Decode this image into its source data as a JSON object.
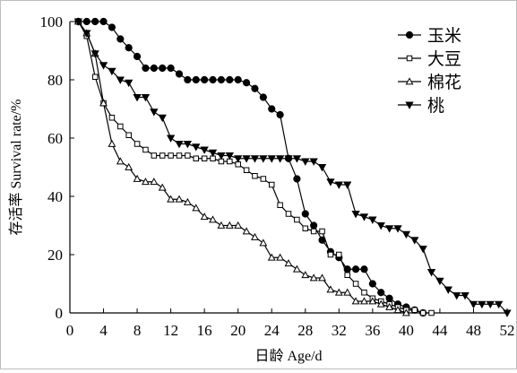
{
  "chart_data": {
    "type": "line",
    "title": "",
    "xlabel": "日龄 Age/d",
    "ylabel": "存活率 Survival rate/%",
    "xlim": [
      0,
      52
    ],
    "ylim": [
      0,
      100
    ],
    "xticks": [
      0,
      4,
      8,
      12,
      16,
      20,
      24,
      28,
      32,
      36,
      40,
      44,
      48,
      52
    ],
    "yticks": [
      0,
      20,
      40,
      60,
      80,
      100
    ],
    "grid": false,
    "legend_position": "top-right",
    "series": [
      {
        "name": "玉米",
        "marker": "filled-circle",
        "x": [
          1,
          2,
          3,
          4,
          5,
          6,
          7,
          8,
          9,
          10,
          11,
          12,
          13,
          14,
          15,
          16,
          17,
          18,
          19,
          20,
          21,
          22,
          23,
          24,
          25,
          26,
          27,
          28,
          29,
          30,
          31,
          32,
          33,
          34,
          35,
          36,
          37,
          38,
          39,
          40,
          41,
          42
        ],
        "y": [
          100,
          100,
          100,
          100,
          98,
          94,
          91,
          88,
          84,
          84,
          84,
          84,
          82,
          80,
          80,
          80,
          80,
          80,
          80,
          80,
          79,
          77,
          74,
          70,
          68,
          53,
          46,
          34,
          30,
          25,
          21,
          19,
          15,
          15,
          15,
          10,
          7,
          5,
          3,
          2,
          1,
          0
        ]
      },
      {
        "name": "大豆",
        "marker": "open-square",
        "x": [
          1,
          2,
          3,
          4,
          5,
          6,
          7,
          8,
          9,
          10,
          11,
          12,
          13,
          14,
          15,
          16,
          17,
          18,
          19,
          20,
          21,
          22,
          23,
          24,
          25,
          26,
          27,
          28,
          29,
          30,
          31,
          32,
          33,
          34,
          35,
          36,
          37,
          38,
          39,
          40,
          41,
          42,
          43
        ],
        "y": [
          100,
          95,
          81,
          72,
          67,
          64,
          61,
          58,
          56,
          54,
          54,
          54,
          54,
          54,
          53,
          53,
          53,
          52,
          52,
          51,
          49,
          47,
          46,
          44,
          37,
          34,
          32,
          29,
          28,
          28,
          20,
          20,
          13,
          10,
          7,
          5,
          4,
          3,
          2,
          1,
          1,
          0,
          0
        ]
      },
      {
        "name": "棉花",
        "marker": "open-triangle",
        "x": [
          1,
          2,
          3,
          4,
          5,
          6,
          7,
          8,
          9,
          10,
          11,
          12,
          13,
          14,
          15,
          16,
          17,
          18,
          19,
          20,
          21,
          22,
          23,
          24,
          25,
          26,
          27,
          28,
          29,
          30,
          31,
          32,
          33,
          34,
          35,
          36,
          37,
          38,
          39,
          40
        ],
        "y": [
          100,
          96,
          89,
          72,
          58,
          52,
          50,
          46,
          45,
          45,
          43,
          39,
          39,
          38,
          36,
          33,
          32,
          30,
          30,
          30,
          28,
          26,
          24,
          19,
          19,
          17,
          15,
          13,
          12,
          12,
          8,
          7,
          7,
          4,
          4,
          4,
          3,
          2,
          1,
          0
        ]
      },
      {
        "name": "桃",
        "marker": "filled-down-triangle",
        "x": [
          1,
          2,
          3,
          4,
          5,
          6,
          7,
          8,
          9,
          10,
          11,
          12,
          13,
          14,
          15,
          16,
          17,
          18,
          19,
          20,
          21,
          22,
          23,
          24,
          25,
          26,
          27,
          28,
          29,
          30,
          31,
          32,
          33,
          34,
          35,
          36,
          37,
          38,
          39,
          40,
          41,
          42,
          43,
          44,
          45,
          46,
          47,
          48,
          49,
          50,
          51,
          52
        ],
        "y": [
          100,
          96,
          89,
          85,
          83,
          80,
          79,
          74,
          74,
          69,
          67,
          60,
          58,
          58,
          57,
          56,
          55,
          54,
          54,
          53,
          53,
          53,
          53,
          53,
          53,
          53,
          53,
          52,
          52,
          50,
          45,
          44,
          44,
          34,
          33,
          32,
          30,
          29,
          29,
          27,
          25,
          22,
          14,
          11,
          8,
          6,
          6,
          3,
          3,
          3,
          3,
          0
        ]
      }
    ]
  }
}
